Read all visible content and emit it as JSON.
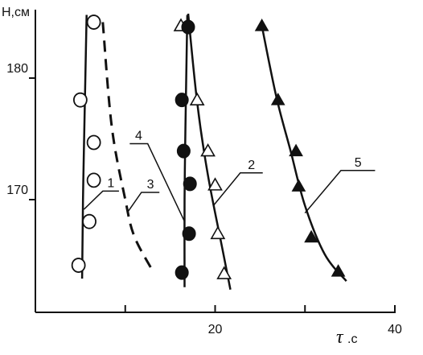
{
  "chart_data": {
    "type": "scatter",
    "ylabel": "H,см",
    "xlabel_symbol": "τ",
    "xlabel_unit": ".с",
    "xlim": [
      0,
      40
    ],
    "ylim": [
      160,
      185
    ],
    "x_tick_labels": [
      "20",
      "40"
    ],
    "y_tick_labels": [
      "180",
      "170"
    ],
    "x_ticks": [
      20,
      40
    ],
    "y_ticks": [
      180,
      170
    ],
    "x_minor_ticks": [
      10,
      30
    ],
    "grid": false,
    "legend": "none (curves numbered 1-5 with leader lines)",
    "series": [
      {
        "name": "1",
        "marker": "open-circle",
        "line_style": "solid",
        "points": [
          [
            6.5,
            184.6
          ],
          [
            5.0,
            178.2
          ],
          [
            6.5,
            174.7
          ],
          [
            6.5,
            171.6
          ],
          [
            6.0,
            168.2
          ],
          [
            4.8,
            164.6
          ]
        ],
        "curve": [
          [
            5.7,
            185.2
          ],
          [
            5.4,
            174
          ],
          [
            5.3,
            170
          ],
          [
            5.2,
            163.5
          ]
        ]
      },
      {
        "name": "2",
        "marker": "open-triangle",
        "line_style": "solid",
        "points": [
          [
            16.2,
            184.3
          ],
          [
            18.0,
            178.2
          ],
          [
            19.2,
            174.0
          ],
          [
            20.0,
            171.2
          ],
          [
            20.3,
            167.2
          ],
          [
            21.0,
            163.9
          ]
        ],
        "curve": [
          [
            17.0,
            185.3
          ],
          [
            18.0,
            178
          ],
          [
            19.2,
            172
          ],
          [
            20.8,
            166
          ],
          [
            21.7,
            162.6
          ]
        ]
      },
      {
        "name": "3",
        "marker": "none",
        "line_style": "dashed",
        "points": [],
        "curve": [
          [
            7.5,
            184.6
          ],
          [
            8.5,
            176
          ],
          [
            10,
            170
          ],
          [
            11,
            167
          ],
          [
            13,
            164.2
          ]
        ]
      },
      {
        "name": "4",
        "marker": "filled-circle",
        "line_style": "solid",
        "points": [
          [
            17.0,
            184.2
          ],
          [
            16.3,
            178.2
          ],
          [
            16.5,
            174.0
          ],
          [
            17.2,
            171.3
          ],
          [
            17.1,
            167.2
          ],
          [
            16.3,
            164.0
          ]
        ],
        "curve": [
          [
            16.9,
            185.2
          ],
          [
            16.7,
            176
          ],
          [
            16.6,
            170
          ],
          [
            16.6,
            162.8
          ]
        ]
      },
      {
        "name": "5",
        "marker": "filled-triangle",
        "line_style": "solid",
        "points": [
          [
            25.2,
            184.3
          ],
          [
            27.0,
            178.2
          ],
          [
            29.0,
            174.0
          ],
          [
            29.3,
            171.1
          ],
          [
            30.7,
            166.9
          ],
          [
            33.7,
            164.1
          ]
        ],
        "curve": [
          [
            25.2,
            184.3
          ],
          [
            26.8,
            178.5
          ],
          [
            28.4,
            174
          ],
          [
            30,
            169.5
          ],
          [
            32.2,
            165.5
          ],
          [
            34.6,
            163.3
          ]
        ]
      }
    ],
    "curve_labels": [
      {
        "text": "1",
        "anchor": [
          5.4,
          169.2
        ],
        "elbow": [
          7.5,
          170.7
        ],
        "end": [
          9.3,
          170.7
        ]
      },
      {
        "text": "2",
        "anchor": [
          19.8,
          169.5
        ],
        "elbow": [
          22.8,
          172.2
        ],
        "end": [
          25.3,
          172.2
        ]
      },
      {
        "text": "3",
        "anchor": [
          10.2,
          168.9
        ],
        "elbow": [
          11.8,
          170.6
        ],
        "end": [
          13.8,
          170.6
        ]
      },
      {
        "text": "4",
        "anchor": [
          16.6,
          168.2
        ],
        "elbow": [
          12.5,
          174.6
        ],
        "end": [
          10.5,
          174.6
        ]
      },
      {
        "text": "5",
        "anchor": [
          30.0,
          168.9
        ],
        "elbow": [
          34.0,
          172.4
        ],
        "end": [
          37.8,
          172.4
        ]
      }
    ]
  }
}
